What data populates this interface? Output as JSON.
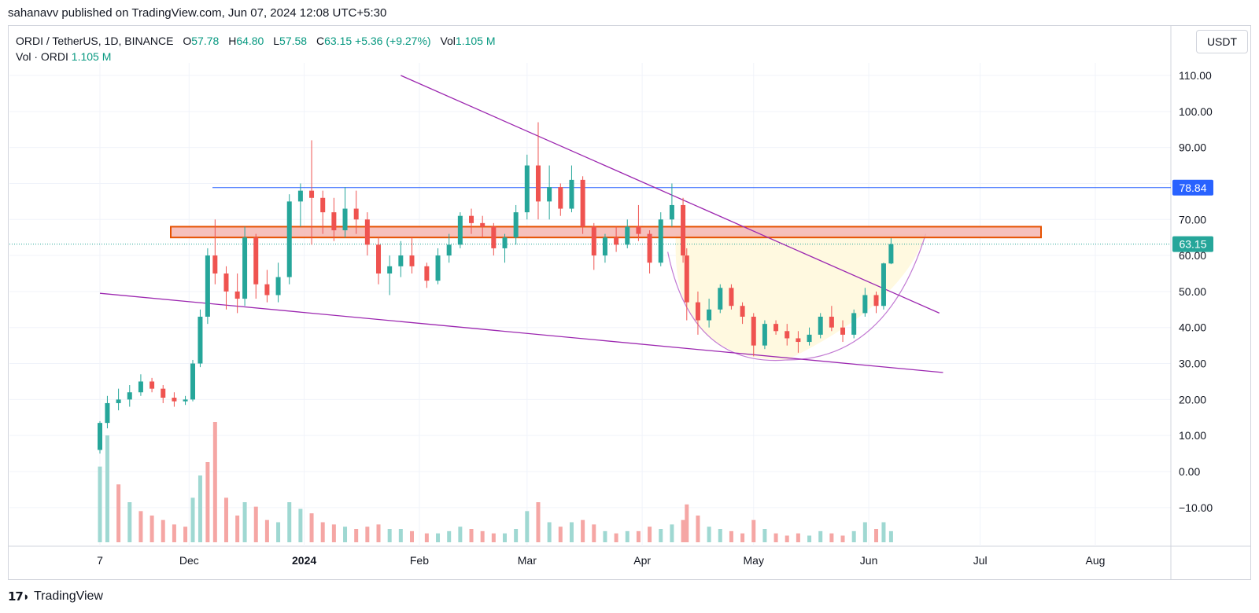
{
  "header": {
    "published": "sahanavv published on TradingView.com, Jun 07, 2024 12:08 UTC+5:30"
  },
  "legend": {
    "symbol": "ORDI / TetherUS, 1D, BINANCE",
    "o_label": "O",
    "o_value": "57.78",
    "h_label": "H",
    "h_value": "64.80",
    "l_label": "L",
    "l_value": "57.58",
    "c_label": "C",
    "c_value": "63.15",
    "change": "+5.36 (+9.27%)",
    "vol_label": "Vol",
    "vol_value": "1.105 M",
    "vol_line_label": "Vol · ORDI",
    "vol_line_value": "1.105 M"
  },
  "currency": "USDT",
  "footer": {
    "brand": "TradingView",
    "logo_icon": "tradingview-logo-icon"
  },
  "colors": {
    "up": "#26a69a",
    "down": "#ef5350",
    "trendline": "#9c27b0",
    "resistance_line": "#2962ff",
    "zone_fill": "#f4b5b0",
    "zone_border": "#e65100",
    "cup_fill": "#fff9e0",
    "last_price": "#26a69a"
  },
  "chart_data": {
    "type": "candlestick",
    "y_axis_ticks": [
      "110.00",
      "100.00",
      "90.00",
      "80.00",
      "70.00",
      "60.00",
      "50.00",
      "40.00",
      "30.00",
      "20.00",
      "10.00",
      "0.00",
      "−10.00"
    ],
    "x_axis_ticks": [
      "7",
      "Dec",
      "2024",
      "Feb",
      "Mar",
      "Apr",
      "May",
      "Jun",
      "Jul",
      "Aug"
    ],
    "ylim": [
      -20,
      118
    ],
    "resistance_level": 78.84,
    "resistance_label": "78.84",
    "last_price": 63.15,
    "last_price_label": "63.15",
    "resistance_zone": [
      65,
      68
    ],
    "trendlines": [
      {
        "name": "upper",
        "from": [
          "2024-01-27",
          110
        ],
        "to": [
          "2024-06-20",
          44
        ]
      },
      {
        "name": "lower",
        "from": [
          "2023-11-07",
          49.5
        ],
        "to": [
          "2024-06-21",
          27.5
        ]
      }
    ],
    "cup": {
      "start": [
        "2024-04-10",
        62
      ],
      "bottom": [
        "2024-05-10",
        31
      ],
      "end": [
        "2024-06-10",
        64
      ]
    },
    "candles": [
      [
        "2023-11-07",
        6,
        14,
        5,
        13.5
      ],
      [
        "2023-11-09",
        13.5,
        21,
        12,
        19
      ],
      [
        "2023-11-12",
        19,
        23,
        17,
        20
      ],
      [
        "2023-11-15",
        20,
        24,
        18,
        22
      ],
      [
        "2023-11-18",
        22,
        27,
        21,
        25
      ],
      [
        "2023-11-21",
        25,
        26,
        22,
        23
      ],
      [
        "2023-11-24",
        23,
        24,
        19,
        20.5
      ],
      [
        "2023-11-27",
        20.5,
        22,
        18,
        19.5
      ],
      [
        "2023-11-30",
        19.5,
        21,
        18.5,
        20
      ],
      [
        "2023-12-02",
        20,
        31,
        19.5,
        30
      ],
      [
        "2023-12-04",
        30,
        45,
        29,
        43
      ],
      [
        "2023-12-06",
        43,
        62,
        41,
        60
      ],
      [
        "2023-12-08",
        60,
        70,
        52,
        55
      ],
      [
        "2023-12-11",
        55,
        57,
        45,
        50
      ],
      [
        "2023-12-14",
        50,
        55,
        44,
        48
      ],
      [
        "2023-12-16",
        48,
        68,
        46,
        65
      ],
      [
        "2023-12-19",
        65,
        66,
        48,
        52
      ],
      [
        "2023-12-22",
        52,
        56,
        47,
        49
      ],
      [
        "2023-12-25",
        49,
        58,
        47,
        54
      ],
      [
        "2023-12-28",
        54,
        77,
        52,
        75
      ],
      [
        "2023-12-31",
        75,
        80,
        68,
        78
      ],
      [
        "2024-01-03",
        78,
        92,
        63,
        76
      ],
      [
        "2024-01-06",
        76,
        78,
        66,
        72
      ],
      [
        "2024-01-09",
        72,
        76,
        64,
        67
      ],
      [
        "2024-01-12",
        67,
        79,
        65,
        73
      ],
      [
        "2024-01-15",
        73,
        78,
        66,
        70
      ],
      [
        "2024-01-18",
        70,
        72,
        60,
        63
      ],
      [
        "2024-01-21",
        63,
        65,
        52,
        55
      ],
      [
        "2024-01-24",
        55,
        60,
        49,
        57
      ],
      [
        "2024-01-27",
        57,
        64,
        54,
        60
      ],
      [
        "2024-01-30",
        60,
        65,
        55,
        57
      ],
      [
        "2024-02-03",
        57,
        58,
        51,
        53
      ],
      [
        "2024-02-06",
        53,
        62,
        52,
        60
      ],
      [
        "2024-02-09",
        60,
        66,
        58,
        63
      ],
      [
        "2024-02-12",
        63,
        72,
        62,
        71
      ],
      [
        "2024-02-15",
        71,
        73,
        66,
        69
      ],
      [
        "2024-02-18",
        69,
        71,
        65,
        68
      ],
      [
        "2024-02-21",
        68,
        69,
        60,
        62
      ],
      [
        "2024-02-24",
        62,
        66,
        58,
        65
      ],
      [
        "2024-02-27",
        65,
        74,
        63,
        72
      ],
      [
        "2024-03-01",
        72,
        88,
        70,
        85
      ],
      [
        "2024-03-04",
        85,
        97,
        70,
        75
      ],
      [
        "2024-03-07",
        75,
        85,
        70,
        79
      ],
      [
        "2024-03-10",
        79,
        80,
        71,
        73
      ],
      [
        "2024-03-13",
        73,
        85,
        72,
        81
      ],
      [
        "2024-03-16",
        81,
        82,
        66,
        68
      ],
      [
        "2024-03-19",
        68,
        69,
        56,
        60
      ],
      [
        "2024-03-22",
        60,
        66,
        58,
        65
      ],
      [
        "2024-03-25",
        65,
        68,
        61,
        63
      ],
      [
        "2024-03-28",
        63,
        70,
        62,
        68
      ],
      [
        "2024-03-31",
        68,
        74,
        64,
        66
      ],
      [
        "2024-04-03",
        66,
        67,
        55,
        58
      ],
      [
        "2024-04-06",
        58,
        72,
        57,
        70
      ],
      [
        "2024-04-09",
        70,
        80,
        68,
        74
      ],
      [
        "2024-04-12",
        74,
        76,
        58,
        60
      ],
      [
        "2024-04-13",
        60,
        62,
        42,
        47
      ],
      [
        "2024-04-16",
        47,
        50,
        38,
        42
      ],
      [
        "2024-04-19",
        42,
        48,
        40,
        45
      ],
      [
        "2024-04-22",
        45,
        52,
        44,
        51
      ],
      [
        "2024-04-25",
        51,
        52,
        45,
        46
      ],
      [
        "2024-04-28",
        46,
        47,
        41,
        43
      ],
      [
        "2024-05-01",
        43,
        44,
        32,
        35
      ],
      [
        "2024-05-04",
        35,
        42,
        34,
        41
      ],
      [
        "2024-05-07",
        41,
        42,
        38,
        39
      ],
      [
        "2024-05-10",
        39,
        41,
        35,
        37
      ],
      [
        "2024-05-13",
        37,
        39,
        33,
        36
      ],
      [
        "2024-05-16",
        36,
        40,
        35,
        38
      ],
      [
        "2024-05-19",
        38,
        44,
        37,
        43
      ],
      [
        "2024-05-22",
        43,
        46,
        39,
        40
      ],
      [
        "2024-05-25",
        40,
        42,
        36,
        38
      ],
      [
        "2024-05-28",
        38,
        45,
        37,
        44
      ],
      [
        "2024-05-31",
        44,
        51,
        43,
        49
      ],
      [
        "2024-06-03",
        49,
        50,
        44,
        46
      ],
      [
        "2024-06-05",
        46,
        58,
        45,
        57.8
      ],
      [
        "2024-06-07",
        57.78,
        64.8,
        57.58,
        63.15
      ]
    ],
    "volume": [
      [
        "2023-11-07",
        34,
        "up"
      ],
      [
        "2023-11-09",
        48,
        "up"
      ],
      [
        "2023-11-12",
        26,
        "down"
      ],
      [
        "2023-11-15",
        18,
        "up"
      ],
      [
        "2023-11-18",
        14,
        "down"
      ],
      [
        "2023-11-21",
        12,
        "down"
      ],
      [
        "2023-11-24",
        10,
        "down"
      ],
      [
        "2023-11-27",
        8,
        "down"
      ],
      [
        "2023-11-30",
        7,
        "down"
      ],
      [
        "2023-12-02",
        20,
        "up"
      ],
      [
        "2023-12-04",
        30,
        "up"
      ],
      [
        "2023-12-06",
        36,
        "down"
      ],
      [
        "2023-12-08",
        54,
        "down"
      ],
      [
        "2023-12-11",
        20,
        "down"
      ],
      [
        "2023-12-14",
        12,
        "down"
      ],
      [
        "2023-12-16",
        18,
        "up"
      ],
      [
        "2023-12-19",
        16,
        "down"
      ],
      [
        "2023-12-22",
        10,
        "down"
      ],
      [
        "2023-12-25",
        9,
        "up"
      ],
      [
        "2023-12-28",
        18,
        "up"
      ],
      [
        "2023-12-31",
        15,
        "up"
      ],
      [
        "2024-01-03",
        13,
        "down"
      ],
      [
        "2024-01-06",
        9,
        "down"
      ],
      [
        "2024-01-09",
        8,
        "down"
      ],
      [
        "2024-01-12",
        7,
        "up"
      ],
      [
        "2024-01-15",
        6,
        "down"
      ],
      [
        "2024-01-18",
        7,
        "down"
      ],
      [
        "2024-01-21",
        8,
        "down"
      ],
      [
        "2024-01-24",
        6,
        "up"
      ],
      [
        "2024-01-27",
        6,
        "up"
      ],
      [
        "2024-01-30",
        5,
        "down"
      ],
      [
        "2024-02-03",
        4,
        "down"
      ],
      [
        "2024-02-06",
        4,
        "up"
      ],
      [
        "2024-02-09",
        5,
        "up"
      ],
      [
        "2024-02-12",
        7,
        "up"
      ],
      [
        "2024-02-15",
        6,
        "down"
      ],
      [
        "2024-02-18",
        5,
        "down"
      ],
      [
        "2024-02-21",
        4,
        "down"
      ],
      [
        "2024-02-24",
        4,
        "up"
      ],
      [
        "2024-02-27",
        6,
        "up"
      ],
      [
        "2024-03-01",
        14,
        "up"
      ],
      [
        "2024-03-04",
        18,
        "down"
      ],
      [
        "2024-03-07",
        9,
        "up"
      ],
      [
        "2024-03-10",
        7,
        "down"
      ],
      [
        "2024-03-13",
        9,
        "up"
      ],
      [
        "2024-03-16",
        10,
        "down"
      ],
      [
        "2024-03-19",
        8,
        "down"
      ],
      [
        "2024-03-22",
        5,
        "up"
      ],
      [
        "2024-03-25",
        4,
        "down"
      ],
      [
        "2024-03-28",
        5,
        "up"
      ],
      [
        "2024-03-31",
        5,
        "down"
      ],
      [
        "2024-04-03",
        7,
        "down"
      ],
      [
        "2024-04-06",
        6,
        "up"
      ],
      [
        "2024-04-09",
        8,
        "up"
      ],
      [
        "2024-04-12",
        10,
        "down"
      ],
      [
        "2024-04-13",
        17,
        "down"
      ],
      [
        "2024-04-16",
        12,
        "down"
      ],
      [
        "2024-04-19",
        7,
        "up"
      ],
      [
        "2024-04-22",
        6,
        "up"
      ],
      [
        "2024-04-25",
        5,
        "down"
      ],
      [
        "2024-04-28",
        4,
        "down"
      ],
      [
        "2024-05-01",
        10,
        "down"
      ],
      [
        "2024-05-04",
        6,
        "up"
      ],
      [
        "2024-05-07",
        4,
        "down"
      ],
      [
        "2024-05-10",
        3,
        "down"
      ],
      [
        "2024-05-13",
        4,
        "down"
      ],
      [
        "2024-05-16",
        3,
        "up"
      ],
      [
        "2024-05-19",
        5,
        "up"
      ],
      [
        "2024-05-22",
        4,
        "down"
      ],
      [
        "2024-05-25",
        3,
        "down"
      ],
      [
        "2024-05-28",
        5,
        "up"
      ],
      [
        "2024-05-31",
        9,
        "up"
      ],
      [
        "2024-06-03",
        6,
        "down"
      ],
      [
        "2024-06-05",
        9,
        "up"
      ],
      [
        "2024-06-07",
        5,
        "up"
      ]
    ],
    "volume_max": 60
  }
}
